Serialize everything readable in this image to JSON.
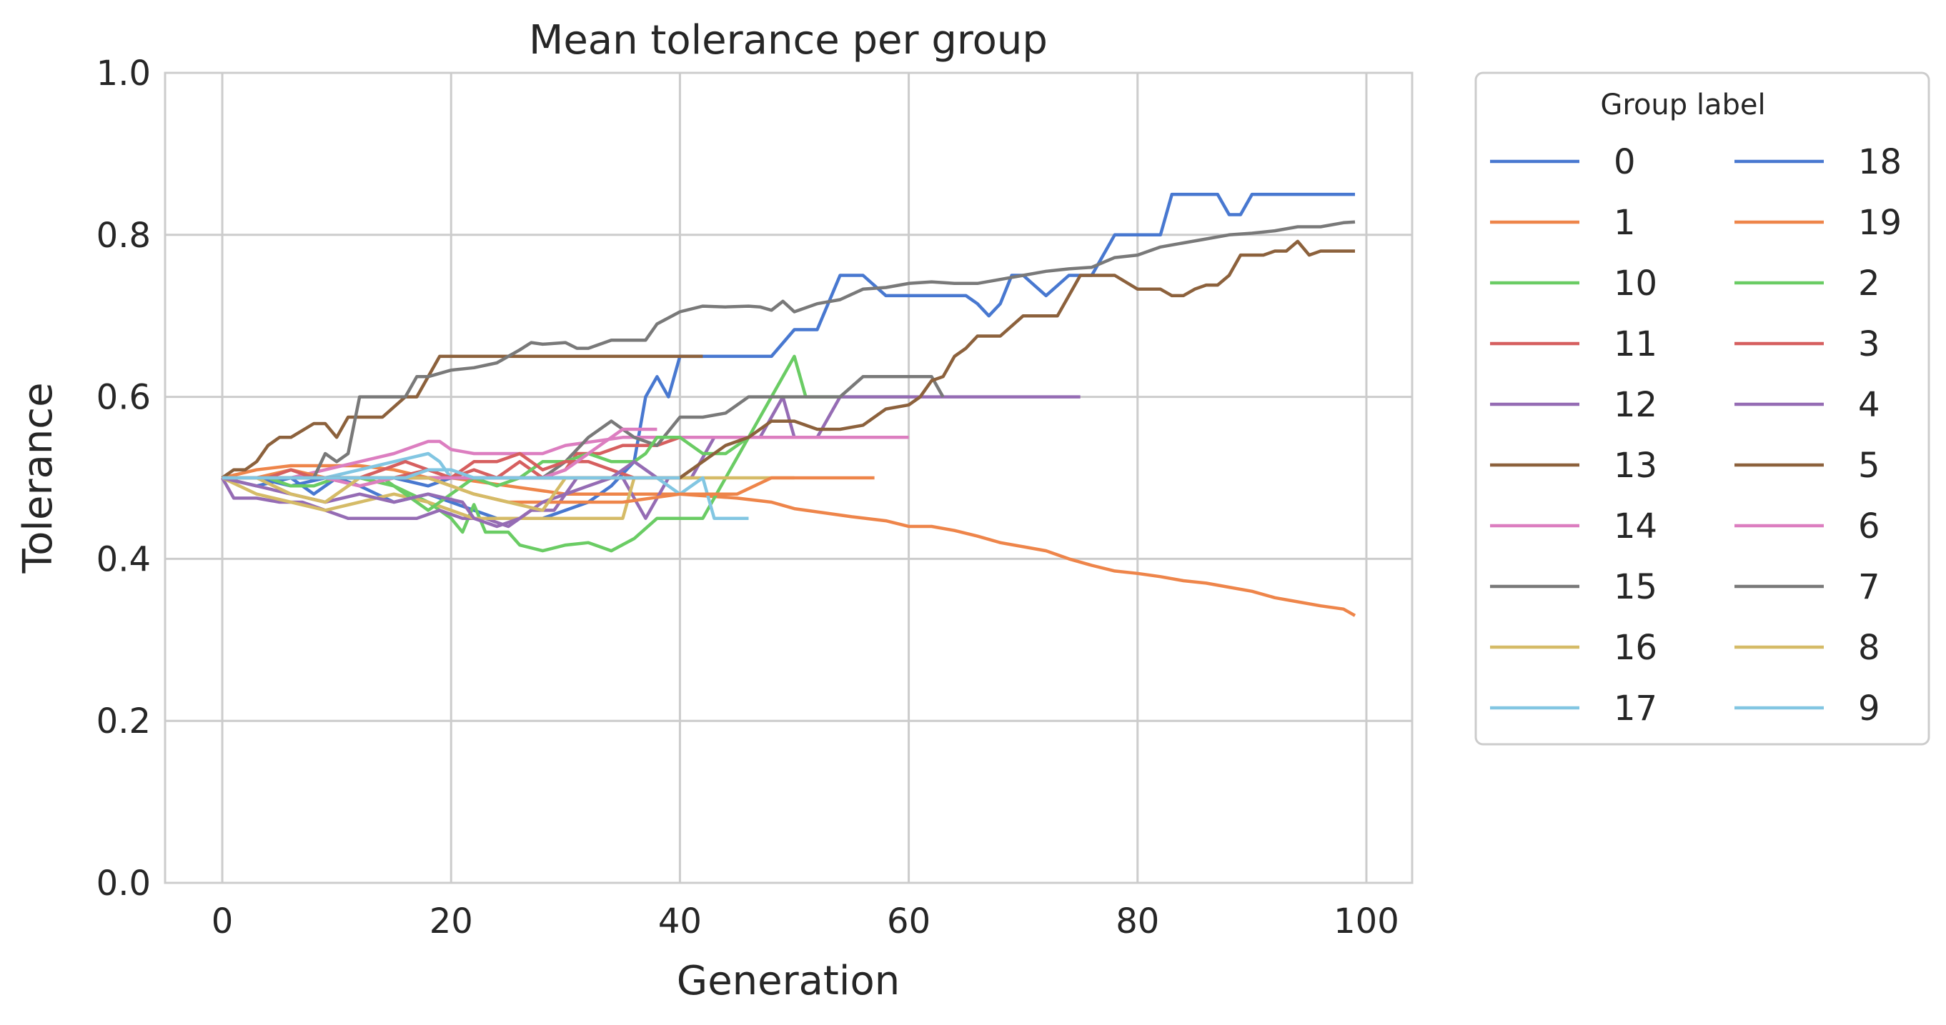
{
  "chart_data": {
    "type": "line",
    "title": "Mean tolerance per group",
    "xlabel": "Generation",
    "ylabel": "Tolerance",
    "xlim": [
      -5,
      104
    ],
    "ylim": [
      0.0,
      1.0
    ],
    "xticks": [
      "0",
      "20",
      "40",
      "60",
      "80",
      "100"
    ],
    "yticks": [
      "0.0",
      "0.2",
      "0.4",
      "0.6",
      "0.8",
      "1.0"
    ],
    "grid": true,
    "legend": {
      "title": "Group label",
      "placement": "outside-right",
      "columns": 2
    },
    "colors": {
      "blue": "#4878d0",
      "orange": "#ee854a",
      "green": "#6acc64",
      "red": "#d65f5f",
      "purple": "#956cb4",
      "brown": "#8c613c",
      "pink": "#dc7ec0",
      "gray": "#797979",
      "olive": "#d5bb67",
      "cyan": "#82c6e2"
    },
    "series": [
      {
        "name": "0",
        "color": "#4878d0",
        "x": [
          0,
          3,
          6,
          8,
          10,
          12,
          15,
          18,
          20,
          22,
          24,
          26,
          28,
          30,
          32,
          34,
          36,
          37,
          38,
          39,
          40,
          42,
          45,
          48,
          50,
          52,
          54,
          56,
          58,
          60,
          62,
          64,
          65,
          66,
          67,
          68,
          69,
          70,
          72,
          74,
          76,
          78,
          80,
          82,
          83,
          85,
          87,
          88,
          89,
          90,
          92,
          95,
          99
        ],
        "y": [
          0.5,
          0.49,
          0.5,
          0.48,
          0.5,
          0.49,
          0.47,
          0.48,
          0.47,
          0.46,
          0.45,
          0.45,
          0.45,
          0.46,
          0.47,
          0.49,
          0.52,
          0.6,
          0.625,
          0.6,
          0.65,
          0.65,
          0.65,
          0.65,
          0.683,
          0.683,
          0.75,
          0.75,
          0.725,
          0.725,
          0.725,
          0.725,
          0.725,
          0.715,
          0.7,
          0.715,
          0.75,
          0.75,
          0.725,
          0.75,
          0.75,
          0.8,
          0.8,
          0.8,
          0.85,
          0.85,
          0.85,
          0.825,
          0.825,
          0.85,
          0.85,
          0.85,
          0.85
        ]
      },
      {
        "name": "1",
        "color": "#ee854a",
        "x": [
          0,
          3,
          6,
          9,
          12,
          15,
          18,
          20,
          25,
          30,
          35,
          40,
          45,
          48,
          50,
          52,
          55,
          58,
          60,
          62,
          64,
          66,
          68,
          70,
          72,
          74,
          76,
          78,
          80,
          82,
          84,
          86,
          88,
          90,
          92,
          94,
          96,
          98,
          99
        ],
        "y": [
          0.5,
          0.51,
          0.515,
          0.515,
          0.515,
          0.51,
          0.5,
          0.5,
          0.49,
          0.48,
          0.48,
          0.48,
          0.475,
          0.47,
          0.462,
          0.458,
          0.452,
          0.447,
          0.44,
          0.44,
          0.435,
          0.428,
          0.42,
          0.415,
          0.41,
          0.4,
          0.392,
          0.385,
          0.382,
          0.378,
          0.373,
          0.37,
          0.365,
          0.36,
          0.352,
          0.347,
          0.342,
          0.338,
          0.33
        ]
      },
      {
        "name": "10",
        "color": "#6acc64",
        "x": [
          0,
          3,
          6,
          9,
          12,
          15,
          18,
          20,
          21,
          22,
          23,
          25,
          26,
          28,
          30,
          32,
          34,
          36,
          38,
          40,
          42,
          44,
          46,
          48,
          50,
          51,
          52,
          55,
          58,
          60
        ],
        "y": [
          0.5,
          0.5,
          0.5,
          0.5,
          0.5,
          0.49,
          0.47,
          0.45,
          0.433,
          0.467,
          0.433,
          0.433,
          0.417,
          0.41,
          0.417,
          0.42,
          0.41,
          0.425,
          0.45,
          0.45,
          0.45,
          0.5,
          0.55,
          0.6,
          0.65,
          0.6,
          0.6,
          0.6,
          0.6,
          0.6
        ]
      },
      {
        "name": "11",
        "color": "#d65f5f",
        "x": [
          0,
          3,
          6,
          9,
          12,
          15,
          18,
          20,
          22,
          24,
          26,
          28,
          30,
          31,
          33,
          35,
          38,
          40
        ],
        "y": [
          0.5,
          0.5,
          0.5,
          0.5,
          0.5,
          0.5,
          0.51,
          0.5,
          0.51,
          0.5,
          0.52,
          0.5,
          0.51,
          0.53,
          0.53,
          0.54,
          0.54,
          0.55
        ]
      },
      {
        "name": "12",
        "color": "#956cb4",
        "x": [
          0,
          1,
          3,
          5,
          7,
          9,
          11,
          13,
          15,
          17,
          19,
          21,
          23,
          25,
          27,
          29,
          31,
          33,
          35,
          37,
          39,
          41,
          43,
          45,
          47,
          49,
          50,
          52,
          54,
          56,
          58,
          60,
          65,
          70,
          75
        ],
        "y": [
          0.5,
          0.475,
          0.475,
          0.47,
          0.47,
          0.46,
          0.45,
          0.45,
          0.45,
          0.45,
          0.46,
          0.45,
          0.45,
          0.44,
          0.46,
          0.46,
          0.5,
          0.5,
          0.5,
          0.45,
          0.5,
          0.5,
          0.55,
          0.55,
          0.55,
          0.6,
          0.55,
          0.55,
          0.6,
          0.6,
          0.6,
          0.6,
          0.6,
          0.6,
          0.6
        ]
      },
      {
        "name": "13",
        "color": "#8c613c",
        "x": [
          0,
          1,
          2,
          3,
          4,
          5,
          6,
          8,
          9,
          10,
          11,
          12,
          14,
          16,
          17,
          19,
          20,
          22,
          25,
          30,
          35,
          40,
          42
        ],
        "y": [
          0.5,
          0.51,
          0.51,
          0.52,
          0.54,
          0.55,
          0.55,
          0.567,
          0.567,
          0.55,
          0.575,
          0.575,
          0.575,
          0.6,
          0.6,
          0.65,
          0.65,
          0.65,
          0.65,
          0.65,
          0.65,
          0.65,
          0.65
        ]
      },
      {
        "name": "14",
        "color": "#dc7ec0",
        "x": [
          0,
          3,
          6,
          9,
          12,
          15,
          17,
          18,
          19,
          20,
          22,
          25,
          28,
          30,
          35,
          40,
          45,
          50,
          55,
          60
        ],
        "y": [
          0.5,
          0.5,
          0.5,
          0.51,
          0.52,
          0.53,
          0.54,
          0.545,
          0.545,
          0.535,
          0.53,
          0.53,
          0.53,
          0.54,
          0.55,
          0.55,
          0.55,
          0.55,
          0.55,
          0.55
        ]
      },
      {
        "name": "15",
        "color": "#797979",
        "x": [
          0,
          3,
          6,
          9,
          12,
          15,
          16,
          17,
          18,
          20,
          22,
          24,
          26,
          28,
          30,
          32,
          34,
          36,
          38,
          40,
          42,
          44,
          46,
          48,
          50,
          52,
          54,
          56,
          58,
          60,
          62,
          63
        ],
        "y": [
          0.5,
          0.5,
          0.5,
          0.5,
          0.5,
          0.5,
          0.5,
          0.5,
          0.5,
          0.5,
          0.5,
          0.5,
          0.5,
          0.5,
          0.52,
          0.55,
          0.57,
          0.55,
          0.54,
          0.575,
          0.575,
          0.58,
          0.6,
          0.6,
          0.6,
          0.6,
          0.6,
          0.625,
          0.625,
          0.625,
          0.625,
          0.6
        ]
      },
      {
        "name": "16",
        "color": "#d5bb67",
        "x": [
          0,
          3,
          6,
          9,
          12,
          15,
          18,
          20,
          22,
          25,
          27,
          28,
          30,
          33,
          35,
          36,
          40,
          45,
          50
        ],
        "y": [
          0.5,
          0.48,
          0.47,
          0.46,
          0.47,
          0.48,
          0.47,
          0.46,
          0.45,
          0.45,
          0.45,
          0.45,
          0.45,
          0.45,
          0.45,
          0.5,
          0.5,
          0.5,
          0.5
        ]
      },
      {
        "name": "17",
        "color": "#82c6e2",
        "x": [
          0,
          3,
          6,
          9,
          12,
          15,
          18,
          19,
          20,
          22,
          25,
          28,
          30,
          33,
          35,
          38,
          40,
          42,
          43,
          44,
          46
        ],
        "y": [
          0.5,
          0.5,
          0.5,
          0.5,
          0.51,
          0.52,
          0.53,
          0.52,
          0.5,
          0.5,
          0.5,
          0.5,
          0.5,
          0.5,
          0.5,
          0.5,
          0.48,
          0.5,
          0.45,
          0.45,
          0.45
        ]
      },
      {
        "name": "18",
        "color": "#4878d0",
        "x": [
          0,
          3,
          6,
          9,
          12,
          15,
          18,
          20,
          22,
          25,
          28,
          30,
          33,
          35,
          36
        ],
        "y": [
          0.5,
          0.5,
          0.49,
          0.5,
          0.5,
          0.5,
          0.49,
          0.5,
          0.5,
          0.5,
          0.5,
          0.5,
          0.5,
          0.5,
          0.5
        ]
      },
      {
        "name": "19",
        "color": "#ee854a",
        "x": [
          0,
          3,
          6,
          9,
          12,
          15,
          18,
          20,
          22,
          25,
          28,
          30,
          35,
          40,
          45,
          48,
          50,
          52,
          55,
          57
        ],
        "y": [
          0.5,
          0.5,
          0.51,
          0.5,
          0.49,
          0.5,
          0.5,
          0.49,
          0.48,
          0.47,
          0.47,
          0.47,
          0.47,
          0.48,
          0.48,
          0.5,
          0.5,
          0.5,
          0.5,
          0.5
        ]
      },
      {
        "name": "2",
        "color": "#6acc64",
        "x": [
          0,
          2,
          4,
          6,
          8,
          10,
          12,
          14,
          16,
          18,
          20,
          22,
          24,
          26,
          28,
          30,
          32,
          34,
          36,
          37,
          38,
          40,
          42,
          44,
          46
        ],
        "y": [
          0.5,
          0.5,
          0.5,
          0.49,
          0.49,
          0.5,
          0.5,
          0.5,
          0.48,
          0.46,
          0.48,
          0.5,
          0.49,
          0.5,
          0.52,
          0.52,
          0.53,
          0.52,
          0.52,
          0.53,
          0.55,
          0.55,
          0.53,
          0.53,
          0.55
        ]
      },
      {
        "name": "3",
        "color": "#d65f5f",
        "x": [
          0,
          2,
          4,
          6,
          8,
          10,
          12,
          14,
          16,
          18,
          20,
          22,
          24,
          26,
          27,
          28,
          30,
          32,
          34,
          36,
          38,
          40
        ],
        "y": [
          0.5,
          0.5,
          0.5,
          0.51,
          0.5,
          0.5,
          0.5,
          0.51,
          0.52,
          0.51,
          0.5,
          0.52,
          0.52,
          0.53,
          0.52,
          0.51,
          0.52,
          0.52,
          0.51,
          0.5,
          0.5,
          0.5
        ]
      },
      {
        "name": "4",
        "color": "#956cb4",
        "x": [
          0,
          3,
          6,
          9,
          12,
          15,
          18,
          21,
          22,
          24,
          26,
          28,
          30,
          32,
          34,
          36,
          38,
          40
        ],
        "y": [
          0.5,
          0.49,
          0.48,
          0.47,
          0.48,
          0.47,
          0.48,
          0.47,
          0.45,
          0.44,
          0.45,
          0.47,
          0.48,
          0.49,
          0.5,
          0.52,
          0.5,
          0.5
        ]
      },
      {
        "name": "5",
        "color": "#8c613c",
        "x": [
          0,
          5,
          10,
          15,
          20,
          25,
          30,
          35,
          40,
          42,
          44,
          46,
          48,
          50,
          52,
          54,
          56,
          58,
          60,
          61,
          62,
          63,
          64,
          65,
          66,
          67,
          68,
          70,
          72,
          73,
          74,
          75,
          76,
          78,
          80,
          82,
          83,
          84,
          85,
          86,
          87,
          88,
          89,
          90,
          91,
          92,
          93,
          94,
          95,
          96,
          97,
          98,
          99
        ],
        "y": [
          0.5,
          0.5,
          0.5,
          0.5,
          0.5,
          0.5,
          0.5,
          0.5,
          0.5,
          0.52,
          0.54,
          0.55,
          0.57,
          0.57,
          0.56,
          0.56,
          0.565,
          0.585,
          0.59,
          0.6,
          0.62,
          0.625,
          0.65,
          0.66,
          0.675,
          0.675,
          0.675,
          0.7,
          0.7,
          0.7,
          0.725,
          0.75,
          0.75,
          0.75,
          0.733,
          0.733,
          0.725,
          0.725,
          0.733,
          0.738,
          0.738,
          0.75,
          0.775,
          0.775,
          0.775,
          0.78,
          0.78,
          0.792,
          0.775,
          0.78,
          0.78,
          0.78,
          0.78
        ]
      },
      {
        "name": "6",
        "color": "#dc7ec0",
        "x": [
          0,
          3,
          6,
          9,
          12,
          15,
          18,
          20,
          22,
          25,
          28,
          30,
          32,
          34,
          35,
          36,
          38
        ],
        "y": [
          0.5,
          0.5,
          0.5,
          0.5,
          0.49,
          0.5,
          0.5,
          0.5,
          0.5,
          0.5,
          0.5,
          0.51,
          0.53,
          0.55,
          0.56,
          0.56,
          0.56
        ]
      },
      {
        "name": "7",
        "color": "#797979",
        "x": [
          0,
          4,
          8,
          9,
          10,
          11,
          12,
          14,
          16,
          17,
          18,
          20,
          22,
          24,
          26,
          27,
          28,
          30,
          31,
          32,
          34,
          35,
          37,
          38,
          40,
          42,
          44,
          46,
          47,
          48,
          49,
          50,
          52,
          54,
          56,
          58,
          60,
          62,
          64,
          66,
          68,
          70,
          72,
          74,
          76,
          78,
          80,
          82,
          84,
          86,
          88,
          90,
          92,
          94,
          96,
          98,
          99
        ],
        "y": [
          0.5,
          0.5,
          0.5,
          0.53,
          0.52,
          0.53,
          0.6,
          0.6,
          0.6,
          0.625,
          0.625,
          0.633,
          0.636,
          0.642,
          0.658,
          0.667,
          0.665,
          0.667,
          0.66,
          0.66,
          0.67,
          0.67,
          0.67,
          0.69,
          0.705,
          0.712,
          0.711,
          0.712,
          0.711,
          0.707,
          0.718,
          0.705,
          0.715,
          0.72,
          0.733,
          0.735,
          0.74,
          0.742,
          0.74,
          0.74,
          0.745,
          0.75,
          0.755,
          0.758,
          0.76,
          0.772,
          0.775,
          0.785,
          0.79,
          0.795,
          0.8,
          0.802,
          0.805,
          0.81,
          0.81,
          0.815,
          0.816
        ]
      },
      {
        "name": "8",
        "color": "#d5bb67",
        "x": [
          0,
          3,
          6,
          9,
          12,
          15,
          18,
          20,
          22,
          25,
          28,
          30,
          32,
          34,
          36,
          38,
          40
        ],
        "y": [
          0.5,
          0.5,
          0.48,
          0.47,
          0.5,
          0.5,
          0.5,
          0.49,
          0.48,
          0.47,
          0.46,
          0.5,
          0.5,
          0.5,
          0.5,
          0.5,
          0.5
        ]
      },
      {
        "name": "9",
        "color": "#82c6e2",
        "x": [
          0,
          2,
          4,
          6,
          8,
          10,
          12,
          14,
          16,
          18,
          20,
          22,
          24,
          26,
          28,
          30,
          32,
          34,
          36,
          38,
          40
        ],
        "y": [
          0.5,
          0.5,
          0.5,
          0.5,
          0.5,
          0.5,
          0.5,
          0.5,
          0.5,
          0.51,
          0.51,
          0.5,
          0.5,
          0.5,
          0.5,
          0.5,
          0.5,
          0.5,
          0.5,
          0.5,
          0.5
        ]
      }
    ]
  }
}
